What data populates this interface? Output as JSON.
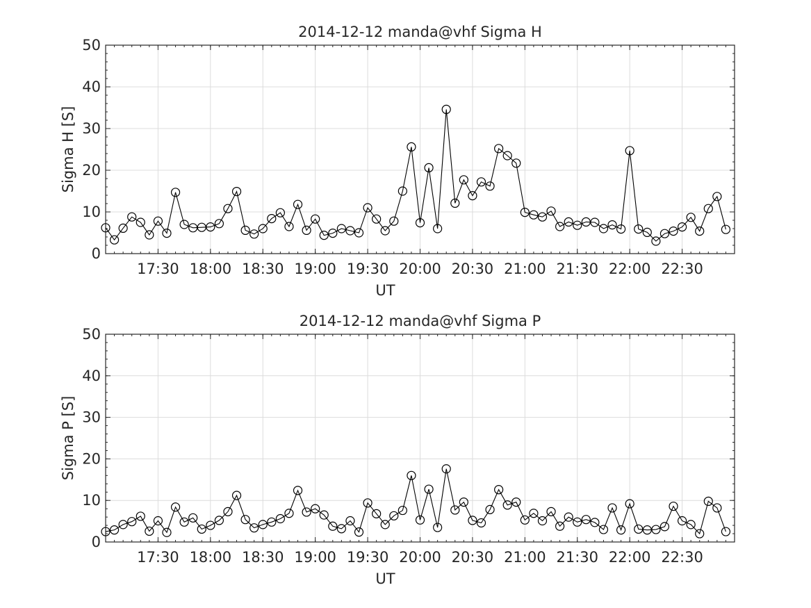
{
  "chart_data": [
    {
      "type": "line",
      "title": "2014-12-12  manda@vhf Sigma H",
      "xlabel": "UT",
      "ylabel": "Sigma H [S]",
      "ylim": [
        0,
        50
      ],
      "yticks": [
        0,
        10,
        20,
        30,
        40,
        50
      ],
      "xlim_minutes": [
        1020,
        1380
      ],
      "xticks": [
        {
          "t": 1050,
          "label": "17:30"
        },
        {
          "t": 1080,
          "label": "18:00"
        },
        {
          "t": 1110,
          "label": "18:30"
        },
        {
          "t": 1140,
          "label": "19:00"
        },
        {
          "t": 1170,
          "label": "19:30"
        },
        {
          "t": 1200,
          "label": "20:00"
        },
        {
          "t": 1230,
          "label": "20:30"
        },
        {
          "t": 1260,
          "label": "21:00"
        },
        {
          "t": 1290,
          "label": "21:30"
        },
        {
          "t": 1320,
          "label": "22:00"
        },
        {
          "t": 1350,
          "label": "22:30"
        }
      ],
      "grid": true,
      "marker": "circle",
      "color": "#000000",
      "x_start_minutes": 1020,
      "x_step_minutes": 5,
      "values": [
        6.2,
        3.3,
        6.1,
        8.8,
        7.5,
        4.5,
        7.8,
        4.9,
        14.7,
        7.0,
        6.2,
        6.3,
        6.4,
        7.2,
        10.8,
        14.9,
        5.6,
        4.7,
        6.0,
        8.4,
        9.8,
        6.5,
        11.8,
        5.6,
        8.3,
        4.4,
        4.9,
        6.0,
        5.5,
        5.0,
        11.0,
        8.3,
        5.5,
        7.8,
        15.0,
        25.6,
        7.4,
        20.6,
        6.0,
        34.6,
        12.1,
        17.7,
        13.9,
        17.2,
        16.2,
        25.2,
        23.5,
        21.7,
        9.9,
        9.3,
        8.8,
        10.2,
        6.5,
        7.6,
        6.8,
        7.6,
        7.5,
        6.0,
        6.9,
        5.9,
        24.7,
        5.9,
        5.1,
        3.0,
        4.8,
        5.4,
        6.4,
        8.7,
        5.4,
        10.8,
        13.7,
        5.8
      ]
    },
    {
      "type": "line",
      "title": "2014-12-12  manda@vhf Sigma P",
      "xlabel": "UT",
      "ylabel": "Sigma P [S]",
      "ylim": [
        0,
        50
      ],
      "yticks": [
        0,
        10,
        20,
        30,
        40,
        50
      ],
      "xlim_minutes": [
        1020,
        1380
      ],
      "xticks": [
        {
          "t": 1050,
          "label": "17:30"
        },
        {
          "t": 1080,
          "label": "18:00"
        },
        {
          "t": 1110,
          "label": "18:30"
        },
        {
          "t": 1140,
          "label": "19:00"
        },
        {
          "t": 1170,
          "label": "19:30"
        },
        {
          "t": 1200,
          "label": "20:00"
        },
        {
          "t": 1230,
          "label": "20:30"
        },
        {
          "t": 1260,
          "label": "21:00"
        },
        {
          "t": 1290,
          "label": "21:30"
        },
        {
          "t": 1320,
          "label": "22:00"
        },
        {
          "t": 1350,
          "label": "22:30"
        }
      ],
      "grid": true,
      "marker": "circle",
      "color": "#000000",
      "x_start_minutes": 1020,
      "x_step_minutes": 5,
      "values": [
        2.5,
        2.9,
        4.2,
        4.9,
        6.2,
        2.6,
        5.1,
        2.3,
        8.4,
        4.8,
        5.8,
        3.1,
        4.0,
        5.2,
        7.3,
        11.2,
        5.4,
        3.4,
        4.2,
        4.8,
        5.6,
        6.9,
        12.4,
        7.2,
        8.0,
        6.5,
        3.8,
        3.2,
        5.1,
        2.4,
        9.4,
        6.8,
        4.2,
        6.3,
        7.6,
        16.0,
        5.3,
        12.7,
        3.5,
        17.6,
        7.7,
        9.6,
        5.2,
        4.6,
        7.8,
        12.6,
        8.9,
        9.6,
        5.3,
        6.9,
        5.1,
        7.3,
        3.8,
        6.0,
        4.8,
        5.4,
        4.7,
        3.0,
        8.2,
        2.9,
        9.2,
        3.1,
        2.9,
        3.0,
        3.7,
        8.6,
        5.1,
        4.2,
        2.0,
        9.8,
        8.2,
        2.5
      ]
    }
  ]
}
